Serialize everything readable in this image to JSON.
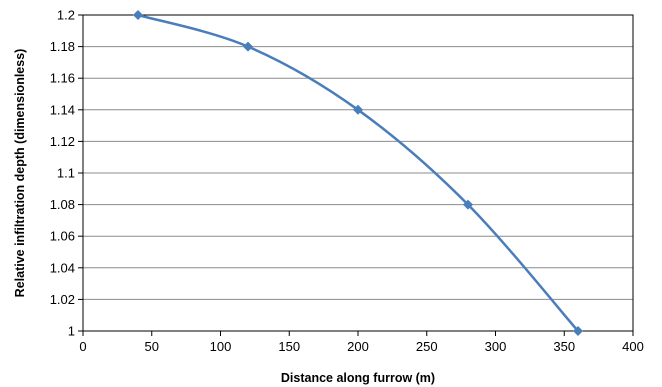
{
  "chart_data": {
    "type": "line",
    "title": "",
    "xlabel": "Distance along furrow (m)",
    "ylabel": "Relative infiltration depth (dimensionless)",
    "xlim": [
      0,
      400
    ],
    "ylim": [
      1,
      1.2
    ],
    "xticks": [
      "0",
      "50",
      "100",
      "150",
      "200",
      "250",
      "300",
      "350",
      "400"
    ],
    "yticks": [
      "1",
      "1.02",
      "1.04",
      "1.06",
      "1.08",
      "1.1",
      "1.12",
      "1.14",
      "1.16",
      "1.18",
      "1.2"
    ],
    "grid": "horizontal",
    "legend": "none",
    "series": [
      {
        "x": [
          40,
          120,
          200,
          280,
          360
        ],
        "y": [
          1.2,
          1.18,
          1.14,
          1.08,
          1.0
        ],
        "color": "#4a7ebb",
        "marker": "diamond",
        "smooth": true
      }
    ]
  }
}
